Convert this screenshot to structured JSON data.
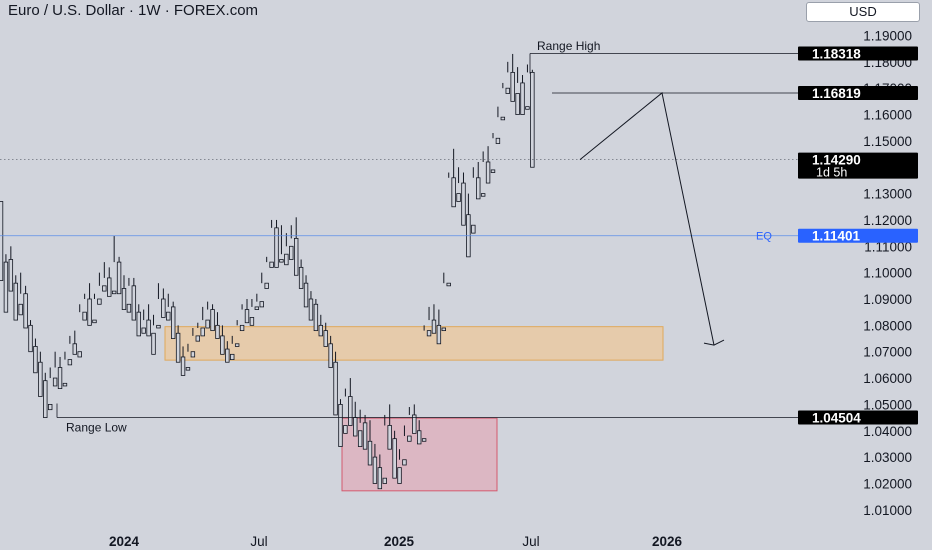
{
  "header": {
    "title": "Euro / U.S. Dollar · 1W · FOREX.com",
    "currency": "USD"
  },
  "chart_data": {
    "type": "candlestick",
    "title": "Euro / U.S. Dollar · 1W · FOREX.com",
    "ylim": [
      1.004,
      1.197
    ],
    "x_ticks": [
      "2024",
      "Jul",
      "2025",
      "Jul",
      "2026"
    ],
    "y_ticks": [
      "1.19000",
      "1.18000",
      "1.17000",
      "1.16000",
      "1.15000",
      "1.14000",
      "1.13000",
      "1.12000",
      "1.11000",
      "1.10000",
      "1.09000",
      "1.08000",
      "1.07000",
      "1.06000",
      "1.05000",
      "1.04000",
      "1.03000",
      "1.02000",
      "1.01000"
    ],
    "y_tick_values": [
      1.19,
      1.18,
      1.17,
      1.16,
      1.15,
      1.14,
      1.13,
      1.12,
      1.11,
      1.1,
      1.09,
      1.08,
      1.07,
      1.06,
      1.05,
      1.04,
      1.03,
      1.02,
      1.01
    ],
    "price_labels": [
      {
        "name": "range-high",
        "text": "1.18318",
        "value": 1.18318
      },
      {
        "name": "target-high",
        "text": "1.16819",
        "value": 1.16819
      },
      {
        "name": "last-price",
        "text": "1.14290",
        "value": 1.1429,
        "sub": "1d 5h"
      },
      {
        "name": "equilibrium",
        "text": "1.11401",
        "value": 1.11401
      },
      {
        "name": "range-low",
        "text": "1.04504",
        "value": 1.04504
      }
    ],
    "annotations": [
      {
        "name": "range-high-label",
        "text": "Range High"
      },
      {
        "name": "range-low-label",
        "text": "Range Low"
      },
      {
        "name": "eq-label",
        "text": "EQ"
      }
    ],
    "zones": [
      {
        "name": "order-block-zone",
        "from": 1.0668,
        "to": 1.0795
      },
      {
        "name": "demand-zone",
        "from": 1.0172,
        "to": 1.0448
      }
    ],
    "projection": [
      1.1429,
      1.1682,
      1.0725
    ],
    "candles": [
      [
        1.127,
        1.1,
        1.104,
        1.097
      ],
      [
        1.104,
        1.107,
        1.089,
        1.085
      ],
      [
        1.105,
        1.11,
        1.096,
        1.093
      ],
      [
        1.096,
        1.099,
        1.085,
        1.082
      ],
      [
        1.088,
        1.1,
        1.092,
        1.084
      ],
      [
        1.092,
        1.095,
        1.08,
        1.079
      ],
      [
        1.08,
        1.082,
        1.072,
        1.07
      ],
      [
        1.072,
        1.075,
        1.065,
        1.062
      ],
      [
        1.066,
        1.07,
        1.056,
        1.053
      ],
      [
        1.059,
        1.062,
        1.046,
        1.045
      ],
      [
        1.05,
        1.064,
        1.06,
        1.048
      ],
      [
        1.06,
        1.07,
        1.064,
        1.057
      ],
      [
        1.064,
        1.068,
        1.058,
        1.056
      ],
      [
        1.058,
        1.07,
        1.067,
        1.057
      ],
      [
        1.067,
        1.076,
        1.073,
        1.065
      ],
      [
        1.073,
        1.078,
        1.07,
        1.069
      ],
      [
        1.07,
        1.088,
        1.085,
        1.068
      ],
      [
        1.085,
        1.092,
        1.09,
        1.082
      ],
      [
        1.09,
        1.096,
        1.082,
        1.08
      ],
      [
        1.082,
        1.092,
        1.09,
        1.081
      ],
      [
        1.09,
        1.1,
        1.095,
        1.088
      ],
      [
        1.095,
        1.104,
        1.098,
        1.093
      ],
      [
        1.098,
        1.102,
        1.093,
        1.091
      ],
      [
        1.093,
        1.114,
        1.104,
        1.092
      ],
      [
        1.104,
        1.106,
        1.094,
        1.092
      ],
      [
        1.094,
        1.099,
        1.088,
        1.086
      ],
      [
        1.088,
        1.098,
        1.095,
        1.085
      ],
      [
        1.095,
        1.098,
        1.085,
        1.082
      ],
      [
        1.085,
        1.088,
        1.079,
        1.076
      ],
      [
        1.079,
        1.086,
        1.082,
        1.077
      ],
      [
        1.082,
        1.088,
        1.077,
        1.076
      ],
      [
        1.077,
        1.084,
        1.08,
        1.069
      ],
      [
        1.08,
        1.096,
        1.09,
        1.079
      ],
      [
        1.09,
        1.094,
        1.085,
        1.083
      ],
      [
        1.085,
        1.092,
        1.087,
        1.082
      ],
      [
        1.087,
        1.089,
        1.077,
        1.075
      ],
      [
        1.077,
        1.08,
        1.068,
        1.066
      ],
      [
        1.068,
        1.072,
        1.064,
        1.061
      ],
      [
        1.064,
        1.073,
        1.07,
        1.063
      ],
      [
        1.07,
        1.079,
        1.076,
        1.068
      ],
      [
        1.076,
        1.081,
        1.079,
        1.074
      ],
      [
        1.079,
        1.087,
        1.082,
        1.076
      ],
      [
        1.082,
        1.089,
        1.086,
        1.079
      ],
      [
        1.086,
        1.088,
        1.08,
        1.078
      ],
      [
        1.08,
        1.085,
        1.076,
        1.075
      ],
      [
        1.076,
        1.08,
        1.071,
        1.069
      ],
      [
        1.071,
        1.074,
        1.069,
        1.066
      ],
      [
        1.069,
        1.076,
        1.073,
        1.067
      ],
      [
        1.073,
        1.082,
        1.08,
        1.072
      ],
      [
        1.08,
        1.088,
        1.086,
        1.078
      ],
      [
        1.086,
        1.09,
        1.083,
        1.081
      ],
      [
        1.083,
        1.09,
        1.087,
        1.08
      ],
      [
        1.087,
        1.092,
        1.089,
        1.086
      ],
      [
        1.089,
        1.1,
        1.096,
        1.087
      ],
      [
        1.096,
        1.106,
        1.104,
        1.094
      ],
      [
        1.104,
        1.12,
        1.117,
        1.102
      ],
      [
        1.117,
        1.12,
        1.105,
        1.102
      ],
      [
        1.105,
        1.118,
        1.107,
        1.104
      ],
      [
        1.107,
        1.115,
        1.11,
        1.103
      ],
      [
        1.11,
        1.118,
        1.113,
        1.105
      ],
      [
        1.113,
        1.121,
        1.102,
        1.099
      ],
      [
        1.102,
        1.105,
        1.096,
        1.094
      ],
      [
        1.096,
        1.099,
        1.09,
        1.087
      ],
      [
        1.09,
        1.093,
        1.088,
        1.082
      ],
      [
        1.088,
        1.09,
        1.08,
        1.078
      ],
      [
        1.08,
        1.084,
        1.078,
        1.076
      ],
      [
        1.078,
        1.081,
        1.073,
        1.072
      ],
      [
        1.073,
        1.076,
        1.066,
        1.064
      ],
      [
        1.066,
        1.07,
        1.05,
        1.046
      ],
      [
        1.05,
        1.052,
        1.042,
        1.034
      ],
      [
        1.042,
        1.056,
        1.053,
        1.039
      ],
      [
        1.053,
        1.06,
        1.045,
        1.042
      ],
      [
        1.045,
        1.051,
        1.04,
        1.038
      ],
      [
        1.04,
        1.048,
        1.043,
        1.034
      ],
      [
        1.043,
        1.046,
        1.036,
        1.033
      ],
      [
        1.036,
        1.044,
        1.03,
        1.027
      ],
      [
        1.03,
        1.035,
        1.026,
        1.02
      ],
      [
        1.026,
        1.031,
        1.022,
        1.018
      ],
      [
        1.022,
        1.046,
        1.042,
        1.02
      ],
      [
        1.042,
        1.05,
        1.037,
        1.033
      ],
      [
        1.037,
        1.04,
        1.026,
        1.022
      ],
      [
        1.026,
        1.033,
        1.029,
        1.02
      ],
      [
        1.029,
        1.042,
        1.038,
        1.027
      ],
      [
        1.038,
        1.049,
        1.046,
        1.036
      ],
      [
        1.046,
        1.05,
        1.04,
        1.039
      ],
      [
        1.04,
        1.044,
        1.037,
        1.035
      ],
      [
        1.037,
        1.08,
        1.078,
        1.036
      ],
      [
        1.078,
        1.087,
        1.082,
        1.076
      ],
      [
        1.082,
        1.088,
        1.08,
        1.077
      ],
      [
        1.08,
        1.086,
        1.079,
        1.073
      ],
      [
        1.079,
        1.1,
        1.096,
        1.078
      ],
      [
        1.096,
        1.138,
        1.136,
        1.095
      ],
      [
        1.136,
        1.147,
        1.13,
        1.125
      ],
      [
        1.13,
        1.14,
        1.134,
        1.127
      ],
      [
        1.134,
        1.138,
        1.122,
        1.118
      ],
      [
        1.122,
        1.13,
        1.118,
        1.106
      ],
      [
        1.118,
        1.14,
        1.136,
        1.115
      ],
      [
        1.136,
        1.142,
        1.13,
        1.128
      ],
      [
        1.13,
        1.146,
        1.142,
        1.129
      ],
      [
        1.142,
        1.148,
        1.139,
        1.134
      ],
      [
        1.139,
        1.153,
        1.151,
        1.138
      ],
      [
        1.151,
        1.163,
        1.159,
        1.149
      ],
      [
        1.159,
        1.172,
        1.17,
        1.158
      ],
      [
        1.17,
        1.18,
        1.176,
        1.168
      ],
      [
        1.176,
        1.183,
        1.168,
        1.165
      ],
      [
        1.168,
        1.178,
        1.172,
        1.16
      ],
      [
        1.172,
        1.175,
        1.163,
        1.16
      ],
      [
        1.163,
        1.179,
        1.176,
        1.162
      ],
      [
        1.176,
        1.177,
        1.1429,
        1.14
      ]
    ]
  }
}
